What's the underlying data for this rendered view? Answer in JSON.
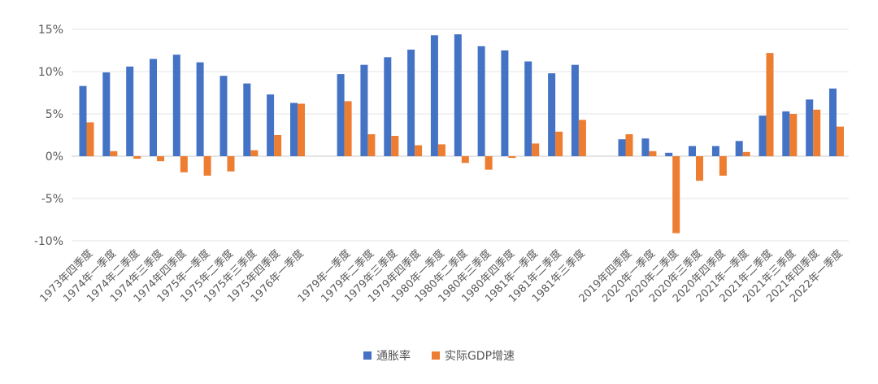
{
  "chart_data": {
    "type": "bar",
    "ylim": [
      -10,
      15
    ],
    "yticks": [
      15,
      10,
      5,
      0,
      -5,
      -10
    ],
    "ytick_labels": [
      "15%",
      "10%",
      "5%",
      "0%",
      "-5%",
      "-10%"
    ],
    "grid": true,
    "legend_position": "bottom",
    "categories": [
      "1973年四季度",
      "1974年一季度",
      "1974年二季度",
      "1974年三季度",
      "1974年四季度",
      "1975年一季度",
      "1975年二季度",
      "1975年三季度",
      "1975年四季度",
      "1976年一季度",
      "",
      "1979年一季度",
      "1979年二季度",
      "1979年三季度",
      "1979年四季度",
      "1980年一季度",
      "1980年二季度",
      "1980年三季度",
      "1980年四季度",
      "1981年一季度",
      "1981年二季度",
      "1981年三季度",
      "",
      "2019年四季度",
      "2020年一季度",
      "2020年二季度",
      "2020年三季度",
      "2020年四季度",
      "2021年一季度",
      "2021年二季度",
      "2021年三季度",
      "2021年四季度",
      "2022年一季度"
    ],
    "series": [
      {
        "name": "通胀率",
        "color": "#4472C4",
        "values": [
          8.3,
          9.9,
          10.6,
          11.5,
          12.0,
          11.1,
          9.5,
          8.6,
          7.3,
          6.3,
          null,
          9.7,
          10.8,
          11.7,
          12.6,
          14.3,
          14.4,
          13.0,
          12.5,
          11.2,
          9.8,
          10.8,
          null,
          2.0,
          2.1,
          0.4,
          1.2,
          1.2,
          1.8,
          4.8,
          5.3,
          6.7,
          8.0
        ]
      },
      {
        "name": "实际GDP增速",
        "color": "#ED7D31",
        "values": [
          4.0,
          0.6,
          -0.3,
          -0.6,
          -1.9,
          -2.3,
          -1.8,
          0.7,
          2.5,
          6.2,
          null,
          6.5,
          2.6,
          2.4,
          1.3,
          1.4,
          -0.8,
          -1.6,
          -0.2,
          1.5,
          2.9,
          4.3,
          null,
          2.6,
          0.6,
          -9.1,
          -2.9,
          -2.3,
          0.5,
          12.2,
          5.0,
          5.5,
          3.5
        ]
      }
    ]
  }
}
